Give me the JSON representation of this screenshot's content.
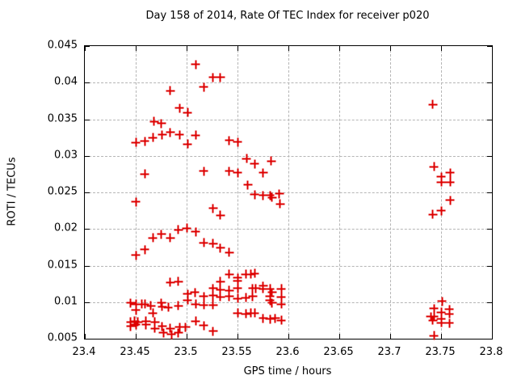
{
  "chart_data": {
    "type": "scatter",
    "title": "Day 158 of 2014, Rate Of TEC Index for receiver p020",
    "xlabel": "GPS time / hours",
    "ylabel": "ROTI / TECUs",
    "xlim": [
      23.4,
      23.8
    ],
    "ylim": [
      0.005,
      0.045
    ],
    "x_ticks": [
      23.4,
      23.45,
      23.5,
      23.55,
      23.6,
      23.65,
      23.7,
      23.75,
      23.8
    ],
    "x_tick_labels": [
      "23.4",
      "23.45",
      "23.5",
      "23.55",
      "23.6",
      "23.65",
      "23.7",
      "23.75",
      "23.8"
    ],
    "y_ticks": [
      0.005,
      0.01,
      0.015,
      0.02,
      0.025,
      0.03,
      0.035,
      0.04,
      0.045
    ],
    "y_tick_labels": [
      "0.005",
      "0.01",
      "0.015",
      "0.02",
      "0.025",
      "0.03",
      "0.035",
      "0.04",
      "0.045"
    ],
    "grid": true,
    "legend": "none",
    "marker": {
      "symbol": "plus",
      "color": "#dd0000"
    },
    "series": [
      {
        "name": "ROTI",
        "points": [
          [
            23.45,
            0.0318
          ],
          [
            23.459,
            0.032
          ],
          [
            23.467,
            0.0325
          ],
          [
            23.468,
            0.0347
          ],
          [
            23.475,
            0.0344
          ],
          [
            23.476,
            0.0329
          ],
          [
            23.484,
            0.0389
          ],
          [
            23.484,
            0.0332
          ],
          [
            23.493,
            0.0365
          ],
          [
            23.493,
            0.0329
          ],
          [
            23.501,
            0.0359
          ],
          [
            23.501,
            0.0316
          ],
          [
            23.509,
            0.0425
          ],
          [
            23.509,
            0.0328
          ],
          [
            23.517,
            0.0394
          ],
          [
            23.526,
            0.0407
          ],
          [
            23.533,
            0.0407
          ],
          [
            23.542,
            0.0321
          ],
          [
            23.55,
            0.0319
          ],
          [
            23.459,
            0.0275
          ],
          [
            23.45,
            0.0237
          ],
          [
            23.559,
            0.0296
          ],
          [
            23.567,
            0.0289
          ],
          [
            23.583,
            0.0293
          ],
          [
            23.517,
            0.0279
          ],
          [
            23.542,
            0.0279
          ],
          [
            23.55,
            0.0277
          ],
          [
            23.575,
            0.0277
          ],
          [
            23.56,
            0.026
          ],
          [
            23.567,
            0.0247
          ],
          [
            23.575,
            0.0246
          ],
          [
            23.582,
            0.0246
          ],
          [
            23.591,
            0.0248
          ],
          [
            23.584,
            0.0243
          ],
          [
            23.592,
            0.0234
          ],
          [
            23.526,
            0.0228
          ],
          [
            23.533,
            0.0219
          ],
          [
            23.5,
            0.0201
          ],
          [
            23.492,
            0.0199
          ],
          [
            23.509,
            0.0196
          ],
          [
            23.475,
            0.0193
          ],
          [
            23.484,
            0.0188
          ],
          [
            23.467,
            0.0188
          ],
          [
            23.517,
            0.0181
          ],
          [
            23.526,
            0.018
          ],
          [
            23.533,
            0.0174
          ],
          [
            23.542,
            0.0168
          ],
          [
            23.459,
            0.0172
          ],
          [
            23.45,
            0.0164
          ],
          [
            23.484,
            0.0127
          ],
          [
            23.492,
            0.0128
          ],
          [
            23.542,
            0.0138
          ],
          [
            23.558,
            0.0138
          ],
          [
            23.563,
            0.0138
          ],
          [
            23.567,
            0.0139
          ],
          [
            23.55,
            0.0133
          ],
          [
            23.533,
            0.0128
          ],
          [
            23.55,
            0.0129
          ],
          [
            23.526,
            0.0119
          ],
          [
            23.533,
            0.0117
          ],
          [
            23.542,
            0.0116
          ],
          [
            23.55,
            0.0119
          ],
          [
            23.565,
            0.0119
          ],
          [
            23.568,
            0.0119
          ],
          [
            23.575,
            0.0122
          ],
          [
            23.575,
            0.0118
          ],
          [
            23.582,
            0.0118
          ],
          [
            23.584,
            0.0113
          ],
          [
            23.593,
            0.0118
          ],
          [
            23.501,
            0.0111
          ],
          [
            23.508,
            0.0113
          ],
          [
            23.501,
            0.0103
          ],
          [
            23.517,
            0.0108
          ],
          [
            23.526,
            0.0109
          ],
          [
            23.533,
            0.0107
          ],
          [
            23.542,
            0.0108
          ],
          [
            23.55,
            0.0105
          ],
          [
            23.558,
            0.0106
          ],
          [
            23.565,
            0.0108
          ],
          [
            23.582,
            0.0108
          ],
          [
            23.593,
            0.0107
          ],
          [
            23.582,
            0.0102
          ],
          [
            23.584,
            0.0099
          ],
          [
            23.445,
            0.0099
          ],
          [
            23.45,
            0.0097
          ],
          [
            23.456,
            0.0097
          ],
          [
            23.459,
            0.0097
          ],
          [
            23.465,
            0.0095
          ],
          [
            23.475,
            0.0099
          ],
          [
            23.476,
            0.0094
          ],
          [
            23.482,
            0.0093
          ],
          [
            23.492,
            0.0095
          ],
          [
            23.45,
            0.0089
          ],
          [
            23.509,
            0.0097
          ],
          [
            23.517,
            0.0096
          ],
          [
            23.526,
            0.0096
          ],
          [
            23.593,
            0.0097
          ],
          [
            23.467,
            0.0085
          ],
          [
            23.55,
            0.0085
          ],
          [
            23.558,
            0.0084
          ],
          [
            23.563,
            0.0085
          ],
          [
            23.567,
            0.0085
          ],
          [
            23.575,
            0.0078
          ],
          [
            23.582,
            0.0077
          ],
          [
            23.587,
            0.0078
          ],
          [
            23.593,
            0.0075
          ],
          [
            23.445,
            0.0073
          ],
          [
            23.449,
            0.0074
          ],
          [
            23.452,
            0.0073
          ],
          [
            23.46,
            0.0074
          ],
          [
            23.469,
            0.0073
          ],
          [
            23.445,
            0.0067
          ],
          [
            23.45,
            0.0069
          ],
          [
            23.46,
            0.0069
          ],
          [
            23.469,
            0.0064
          ],
          [
            23.476,
            0.0067
          ],
          [
            23.477,
            0.0058
          ],
          [
            23.484,
            0.0064
          ],
          [
            23.485,
            0.0056
          ],
          [
            23.492,
            0.0058
          ],
          [
            23.493,
            0.0066
          ],
          [
            23.499,
            0.0066
          ],
          [
            23.509,
            0.0074
          ],
          [
            23.517,
            0.0068
          ],
          [
            23.526,
            0.006
          ],
          [
            23.742,
            0.037
          ],
          [
            23.743,
            0.0285
          ],
          [
            23.759,
            0.0277
          ],
          [
            23.75,
            0.0271
          ],
          [
            23.75,
            0.0264
          ],
          [
            23.759,
            0.0264
          ],
          [
            23.759,
            0.0239
          ],
          [
            23.75,
            0.0225
          ],
          [
            23.742,
            0.022
          ],
          [
            23.751,
            0.0101
          ],
          [
            23.743,
            0.0091
          ],
          [
            23.758,
            0.009
          ],
          [
            23.758,
            0.0084
          ],
          [
            23.74,
            0.008
          ],
          [
            23.743,
            0.008
          ],
          [
            23.742,
            0.0075
          ],
          [
            23.75,
            0.0086
          ],
          [
            23.75,
            0.0077
          ],
          [
            23.75,
            0.0072
          ],
          [
            23.758,
            0.0071
          ],
          [
            23.743,
            0.0054
          ]
        ]
      }
    ]
  }
}
